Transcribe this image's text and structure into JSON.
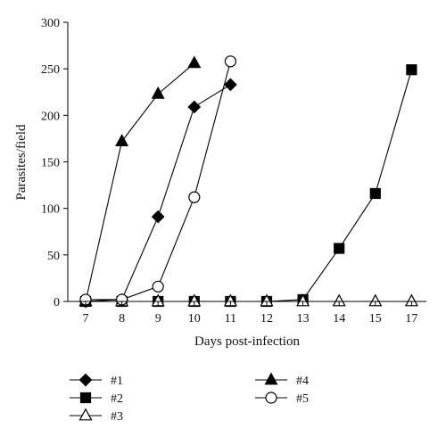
{
  "chart_data": {
    "type": "line",
    "xlabel": "Days post-infection",
    "ylabel": "Parasites/field",
    "ylim": [
      0,
      300
    ],
    "yticks": [
      "0",
      "50",
      "100",
      "150",
      "200",
      "250",
      "300"
    ],
    "categories": [
      "7",
      "8",
      "9",
      "10",
      "11",
      "12",
      "13",
      "14",
      "15",
      "17"
    ],
    "grid": false,
    "legend_position": "bottom",
    "series": [
      {
        "name": "#1",
        "marker": "diamond",
        "fill": "#000000",
        "points": [
          [
            "7",
            0
          ],
          [
            "8",
            2
          ],
          [
            "9",
            91
          ],
          [
            "10",
            209
          ],
          [
            "11",
            233
          ]
        ]
      },
      {
        "name": "#2",
        "marker": "square",
        "fill": "#000000",
        "points": [
          [
            "7",
            0
          ],
          [
            "8",
            0
          ],
          [
            "9",
            0
          ],
          [
            "10",
            0
          ],
          [
            "11",
            0
          ],
          [
            "12",
            0
          ],
          [
            "13",
            2
          ],
          [
            "14",
            57
          ],
          [
            "15",
            116
          ],
          [
            "17",
            249
          ]
        ]
      },
      {
        "name": "#3",
        "marker": "triangle",
        "fill": "#ffffff",
        "points": [
          [
            "7",
            0
          ],
          [
            "8",
            0
          ],
          [
            "9",
            0
          ],
          [
            "10",
            0
          ],
          [
            "11",
            0
          ],
          [
            "12",
            0
          ],
          [
            "13",
            0
          ],
          [
            "14",
            0
          ],
          [
            "15",
            0
          ],
          [
            "17",
            0
          ]
        ]
      },
      {
        "name": "#4",
        "marker": "triangle",
        "fill": "#000000",
        "points": [
          [
            "7",
            0
          ],
          [
            "8",
            172
          ],
          [
            "9",
            223
          ],
          [
            "10",
            256
          ]
        ]
      },
      {
        "name": "#5",
        "marker": "circle",
        "fill": "#ffffff",
        "points": [
          [
            "7",
            2
          ],
          [
            "8",
            2
          ],
          [
            "9",
            16
          ],
          [
            "10",
            112
          ],
          [
            "11",
            258
          ]
        ]
      }
    ]
  }
}
